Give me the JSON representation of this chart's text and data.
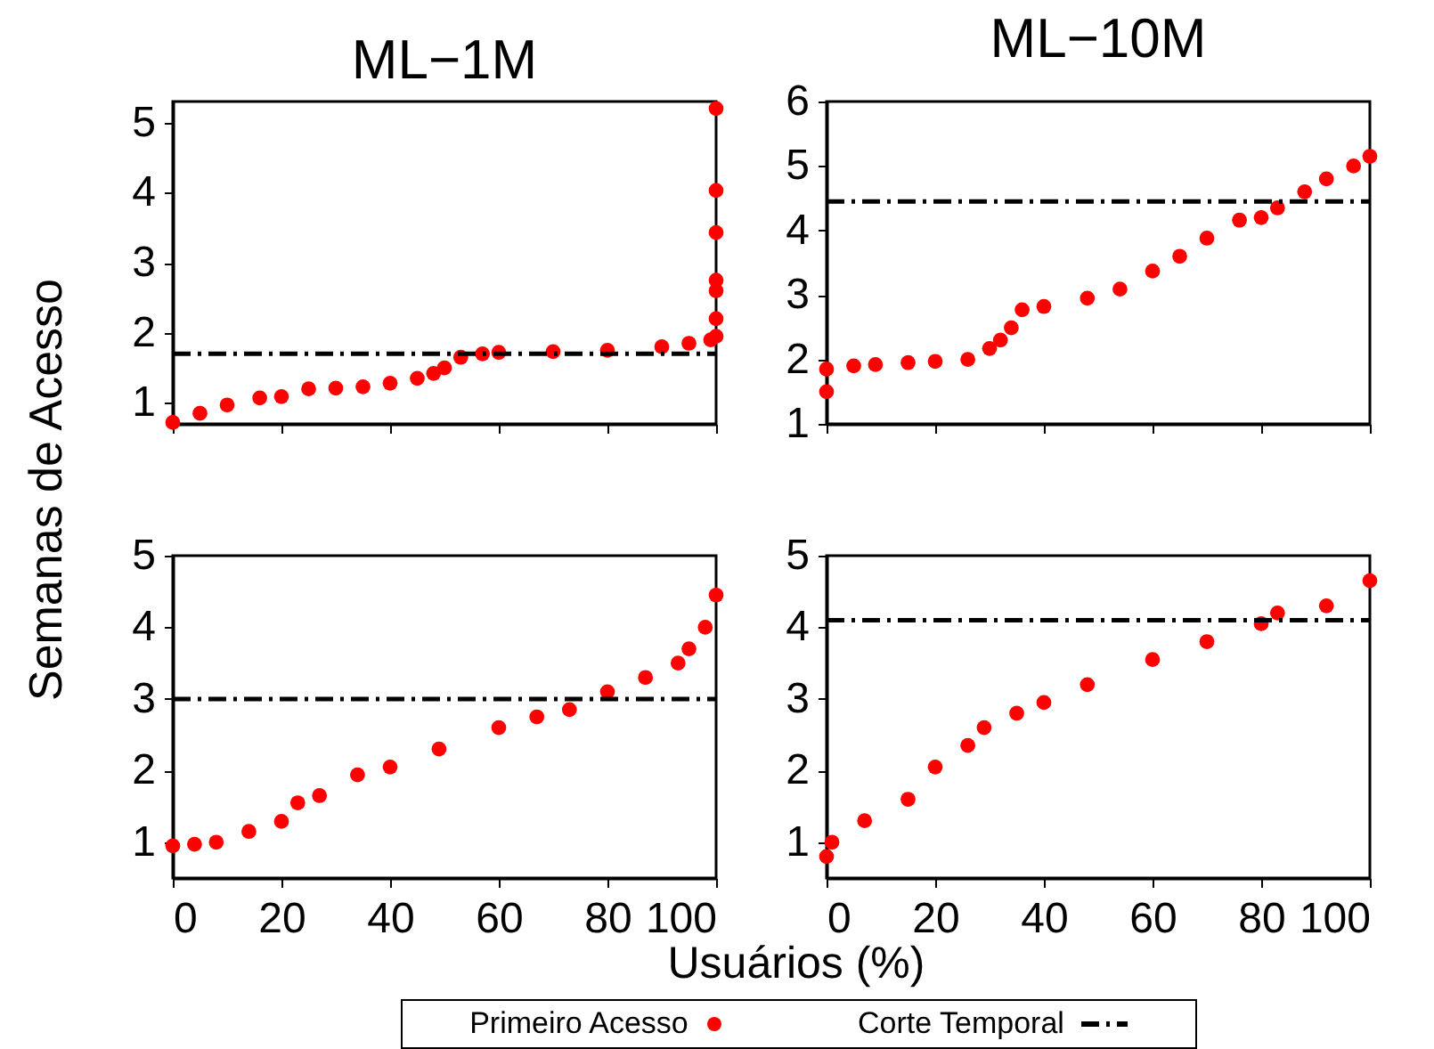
{
  "chart_data": [
    {
      "type": "scatter",
      "title": "ML−1M",
      "ylabel": "Semanas de Acesso",
      "xlim": [
        0,
        100
      ],
      "xticks": [
        0,
        20,
        40,
        60,
        80,
        100
      ],
      "ylim": [
        0.7,
        5.3
      ],
      "yticks": [
        1,
        2,
        3,
        4,
        5
      ],
      "tick_labels": "y",
      "marker": "circle",
      "legend": "bottom",
      "series": [
        {
          "name": "Primeiro Acesso",
          "color": "#ff0000",
          "x": [
            0,
            5,
            10,
            16,
            20,
            25,
            30,
            35,
            40,
            45,
            48,
            50,
            53,
            57,
            60,
            70,
            80,
            90,
            95,
            99,
            100,
            100,
            100,
            100,
            100,
            100,
            100
          ],
          "values": [
            0.72,
            0.85,
            0.97,
            1.07,
            1.09,
            1.2,
            1.21,
            1.23,
            1.28,
            1.35,
            1.42,
            1.5,
            1.65,
            1.7,
            1.72,
            1.73,
            1.75,
            1.8,
            1.85,
            1.9,
            1.95,
            2.2,
            2.6,
            2.75,
            3.43,
            4.03,
            5.2
          ]
        },
        {
          "name": "Corte Temporal",
          "type": "line",
          "line_style": "dashed",
          "marker": "none",
          "color": "#000000",
          "x": [
            0,
            100
          ],
          "values": [
            1.7,
            1.7
          ]
        }
      ]
    },
    {
      "type": "scatter",
      "title": "ML−10M",
      "xlim": [
        0,
        100
      ],
      "xticks": [
        0,
        20,
        40,
        60,
        80,
        100
      ],
      "ylim": [
        1,
        6
      ],
      "yticks": [
        1,
        2,
        3,
        4,
        5,
        6
      ],
      "tick_labels": "y",
      "marker": "circle",
      "legend": "bottom",
      "series": [
        {
          "name": "Primeiro Acesso",
          "color": "#ff0000",
          "x": [
            0,
            0,
            5,
            9,
            15,
            20,
            26,
            30,
            32,
            34,
            36,
            40,
            48,
            54,
            60,
            65,
            70,
            76,
            80,
            83,
            88,
            92,
            97,
            100
          ],
          "values": [
            1.5,
            1.85,
            1.9,
            1.92,
            1.95,
            1.97,
            2.0,
            2.17,
            2.3,
            2.49,
            2.77,
            2.82,
            2.95,
            3.09,
            3.37,
            3.6,
            3.88,
            4.16,
            4.2,
            4.35,
            4.6,
            4.8,
            5.0,
            5.15
          ]
        },
        {
          "name": "Corte Temporal",
          "type": "line",
          "line_style": "dashed",
          "marker": "none",
          "color": "#000000",
          "x": [
            0,
            100
          ],
          "values": [
            4.45,
            4.45
          ]
        }
      ]
    },
    {
      "type": "scatter",
      "xlabel": "Usuários (%)",
      "xlim": [
        0,
        100
      ],
      "xticks": [
        0,
        20,
        40,
        60,
        80,
        100
      ],
      "ylim": [
        0.5,
        5
      ],
      "yticks": [
        1,
        2,
        3,
        4,
        5
      ],
      "marker": "circle",
      "legend": "bottom",
      "series": [
        {
          "name": "Primeiro Acesso",
          "color": "#ff0000",
          "x": [
            0,
            4,
            8,
            14,
            20,
            23,
            27,
            34,
            40,
            49,
            60,
            67,
            73,
            80,
            87,
            93,
            95,
            98,
            100
          ],
          "values": [
            0.95,
            0.97,
            1.0,
            1.15,
            1.29,
            1.55,
            1.65,
            1.94,
            2.05,
            2.3,
            2.6,
            2.75,
            2.85,
            3.1,
            3.3,
            3.5,
            3.7,
            4.0,
            4.45
          ]
        },
        {
          "name": "Corte Temporal",
          "type": "line",
          "line_style": "dashed",
          "marker": "none",
          "color": "#000000",
          "x": [
            0,
            100
          ],
          "values": [
            3.0,
            3.0
          ]
        }
      ]
    },
    {
      "type": "scatter",
      "xlim": [
        0,
        100
      ],
      "xticks": [
        0,
        20,
        40,
        60,
        80,
        100
      ],
      "ylim": [
        0.5,
        5
      ],
      "yticks": [
        1,
        2,
        3,
        4,
        5
      ],
      "marker": "circle",
      "legend": "bottom",
      "series": [
        {
          "name": "Primeiro Acesso",
          "color": "#ff0000",
          "x": [
            0,
            1,
            7,
            15,
            20,
            26,
            29,
            35,
            40,
            48,
            60,
            70,
            80,
            83,
            92,
            100
          ],
          "values": [
            0.8,
            1.0,
            1.3,
            1.6,
            2.05,
            2.35,
            2.6,
            2.8,
            2.95,
            3.2,
            3.55,
            3.8,
            4.05,
            4.2,
            4.3,
            4.65
          ]
        },
        {
          "name": "Corte Temporal",
          "type": "line",
          "line_style": "dashed",
          "marker": "none",
          "color": "#000000",
          "x": [
            0,
            100
          ],
          "values": [
            4.1,
            4.1
          ]
        }
      ]
    }
  ]
}
